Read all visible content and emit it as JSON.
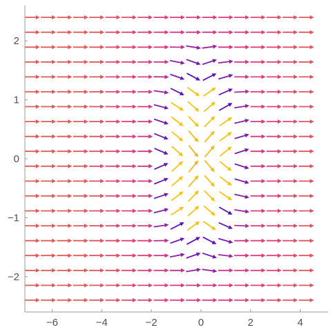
{
  "chart_data": {
    "type": "vector_field",
    "title": "",
    "xlabel": "",
    "ylabel": "",
    "xlim": [
      -7.1,
      5.1
    ],
    "ylim": [
      -2.6,
      2.6
    ],
    "xticks": [
      -6,
      -4,
      -2,
      0,
      2,
      4
    ],
    "yticks": [
      -2,
      -1,
      0,
      1,
      2
    ],
    "xtick_labels": [
      "−6",
      "−4",
      "−2",
      "0",
      "2",
      "4"
    ],
    "ytick_labels": [
      "−2",
      "−1",
      "0",
      "1",
      "2"
    ],
    "grid": false,
    "legend": "none",
    "arrow_grid": {
      "x_start": -6.8,
      "x_step": 0.65,
      "x_count": 18,
      "y_start": -2.4,
      "y_step": 0.2526,
      "y_count": 20
    },
    "field": "rotation of (1,0) by angle ramp(1 - r^2/R^2) * 0.75 * sign(x) * sign(y), r measured from (-0.05, 0), R = 2.1",
    "color_scale": {
      "name": "plasma-like, keyed to angle magnitude",
      "colors": [
        "#e05a57",
        "#e03a7c",
        "#8a1fa6",
        "#5a10b8",
        "#1e0fc0"
      ],
      "inner_colors": [
        "#f5a51c",
        "#f5c416",
        "#fcc10e"
      ]
    },
    "accent_colors": {
      "axis": "#9a9a9a",
      "tick_text": "#505050"
    }
  }
}
